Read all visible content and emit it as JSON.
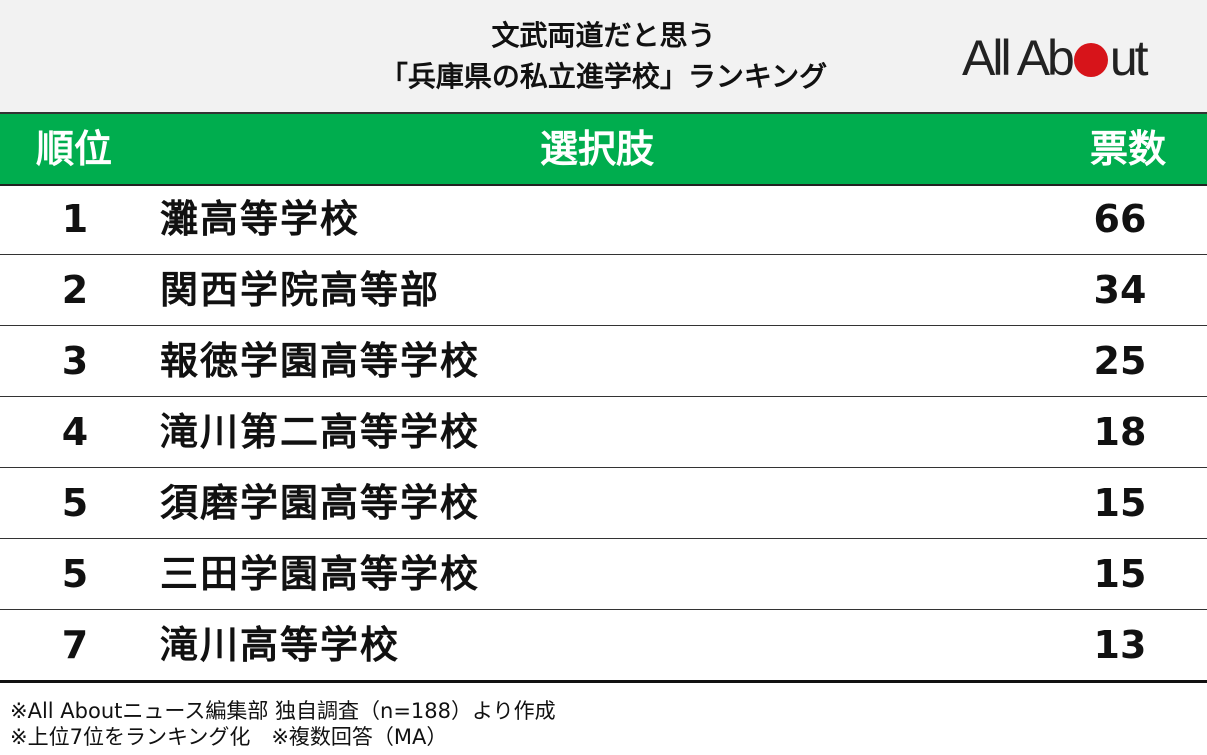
{
  "header": {
    "title_line1": "文武両道だと思う",
    "title_line2": "「兵庫県の私立進学校」ランキング",
    "logo": "All About"
  },
  "colors": {
    "header_band": "#00ad4e",
    "header_bg": "#f2f2f2",
    "logo_dot": "#d7141a"
  },
  "chart_data": {
    "type": "table",
    "columns": [
      "順位",
      "選択肢",
      "票数"
    ],
    "rows": [
      {
        "rank": "1",
        "name": "灘高等学校",
        "votes": "66"
      },
      {
        "rank": "2",
        "name": "関西学院高等部",
        "votes": "34"
      },
      {
        "rank": "3",
        "name": "報徳学園高等学校",
        "votes": "25"
      },
      {
        "rank": "4",
        "name": "滝川第二高等学校",
        "votes": "18"
      },
      {
        "rank": "5",
        "name": "須磨学園高等学校",
        "votes": "15"
      },
      {
        "rank": "5",
        "name": "三田学園高等学校",
        "votes": "15"
      },
      {
        "rank": "7",
        "name": "滝川高等学校",
        "votes": "13"
      }
    ]
  },
  "notes": [
    "※All Aboutニュース編集部 独自調査（n=188）より作成",
    "※上位7位をランキング化　※複数回答（MA）"
  ]
}
